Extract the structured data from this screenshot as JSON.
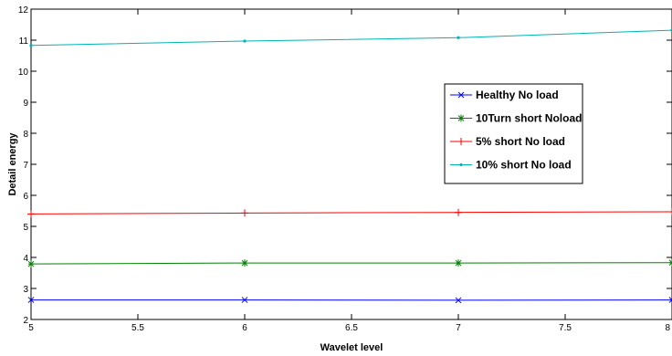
{
  "chart_data": {
    "type": "line",
    "title": "",
    "xlabel": "Wavelet level",
    "ylabel": "Detail energy",
    "xlim": [
      5,
      8
    ],
    "ylim": [
      2,
      12
    ],
    "xticks": [
      5,
      5.5,
      6,
      6.5,
      7,
      7.5,
      8
    ],
    "xtick_labels": [
      "5",
      "5.5",
      "6",
      "6.5",
      "7",
      "7.5",
      "8"
    ],
    "yticks": [
      2,
      3,
      4,
      5,
      6,
      7,
      8,
      9,
      10,
      11,
      12
    ],
    "ytick_labels": [
      "2",
      "3",
      "4",
      "5",
      "6",
      "7",
      "8",
      "9",
      "10",
      "11",
      "12"
    ],
    "grid": false,
    "legend_position": "right",
    "x": [
      5,
      6,
      7,
      8
    ],
    "series": [
      {
        "name": "Healthy No load",
        "values": [
          2.63,
          2.63,
          2.62,
          2.63
        ],
        "color": "#0000ff",
        "marker": "x"
      },
      {
        "name": "10Turn short Noload",
        "values": [
          3.79,
          3.82,
          3.82,
          3.83
        ],
        "color": "#008000",
        "marker": "star"
      },
      {
        "name": "5% short No load",
        "values": [
          5.4,
          5.43,
          5.45,
          5.47
        ],
        "color": "#ff0000",
        "marker": "plus"
      },
      {
        "name": "10% short No load",
        "values": [
          10.83,
          10.97,
          11.08,
          11.32
        ],
        "color": "#00b3b3",
        "marker": "dot"
      }
    ]
  }
}
